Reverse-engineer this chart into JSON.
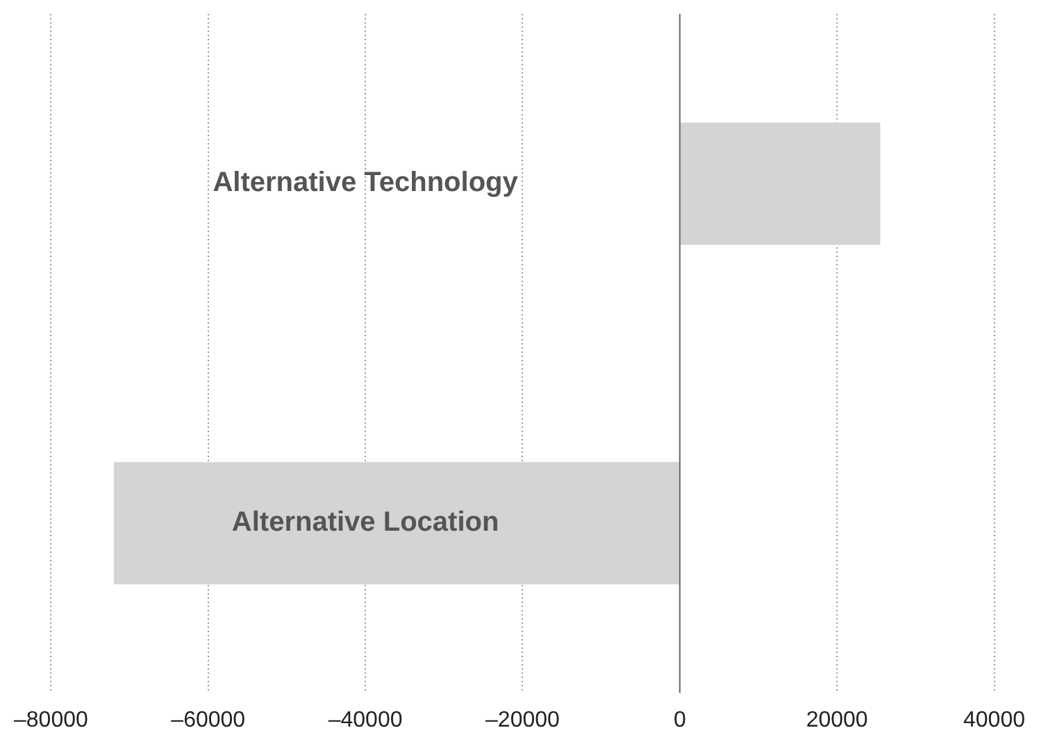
{
  "chart_data": {
    "type": "bar",
    "orientation": "horizontal",
    "categories": [
      "Alternative Technology",
      "Alternative Location"
    ],
    "values": [
      25500,
      -72000
    ],
    "color": "#d4d4d6",
    "xlim": [
      -80000,
      40000
    ],
    "xticks": [
      {
        "value": -80000,
        "label": "–80000"
      },
      {
        "value": -60000,
        "label": "–60000"
      },
      {
        "value": -40000,
        "label": "–40000"
      },
      {
        "value": -20000,
        "label": "–20000"
      },
      0,
      20000,
      40000
    ],
    "grid": "x",
    "line_style": "dotted"
  }
}
